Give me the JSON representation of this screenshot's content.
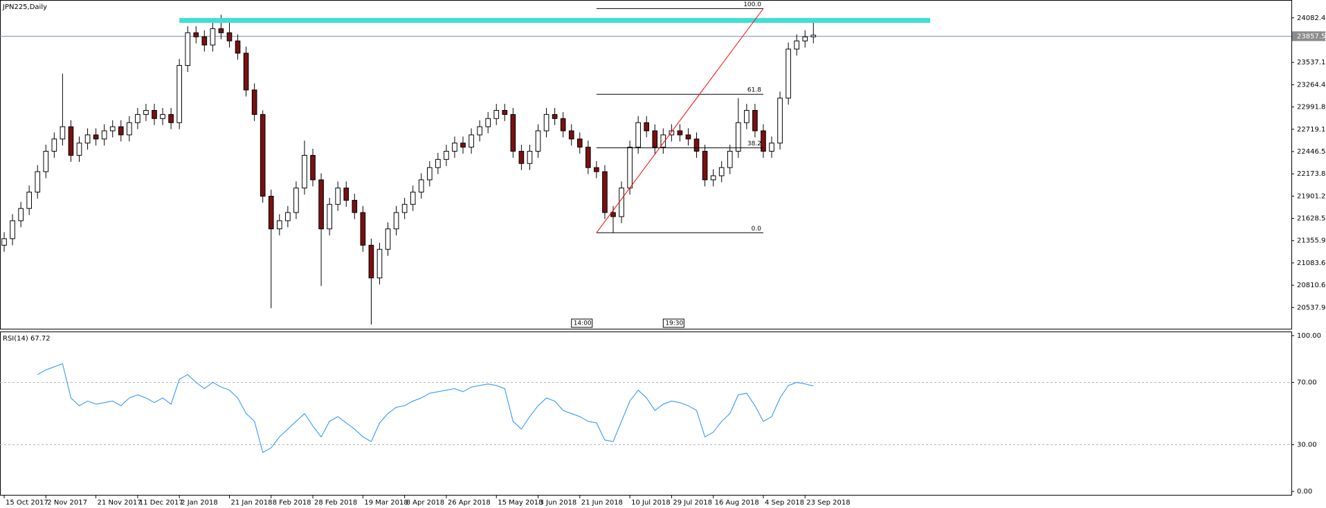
{
  "chart_data": [
    {
      "type": "candlestick",
      "title": "JPN225,Daily",
      "open": [
        21300,
        21380,
        21600,
        21750,
        21950,
        22200,
        22450,
        22600,
        22750,
        22400,
        22550,
        22650,
        22600,
        22700,
        22750,
        22650,
        22800,
        22900,
        22950,
        22850,
        22900,
        22800,
        23500,
        23900,
        23850,
        23750,
        23950,
        23900,
        23800,
        23650,
        23200,
        22900,
        21900,
        21500,
        21600,
        21700,
        22000,
        22400,
        22100,
        21500,
        21800,
        22000,
        21850,
        21700,
        21300,
        20900,
        21250,
        21500,
        21700,
        21800,
        21950,
        22100,
        22250,
        22350,
        22450,
        22550,
        22500,
        22650,
        22750,
        22850,
        22950,
        22900,
        22450,
        22300,
        22450,
        22700,
        22900,
        22850,
        22700,
        22600,
        22500,
        22250,
        22200,
        21700,
        21650,
        22000,
        22500,
        22800,
        22700,
        22500,
        22650,
        22700,
        22650,
        22600,
        22450,
        22100,
        22150,
        22250,
        22450,
        22800,
        22950,
        22700,
        22450,
        22550,
        23100,
        23700,
        23800,
        23850
      ],
      "high": [
        21460,
        21680,
        21830,
        22030,
        22280,
        22530,
        22680,
        23400,
        22830,
        22630,
        22730,
        22730,
        22780,
        22830,
        22830,
        22880,
        22980,
        23030,
        23030,
        22980,
        22980,
        23580,
        23980,
        23980,
        23930,
        24030,
        24120,
        24080,
        23880,
        23730,
        23280,
        22950,
        21980,
        21680,
        21780,
        22080,
        22580,
        22480,
        22180,
        21880,
        22080,
        22080,
        21930,
        21780,
        21380,
        21330,
        21580,
        21780,
        21880,
        22030,
        22180,
        22330,
        22430,
        22530,
        22630,
        22630,
        22730,
        22830,
        22930,
        23030,
        23030,
        22980,
        22530,
        22530,
        22780,
        22980,
        22980,
        22930,
        22780,
        22680,
        22580,
        22330,
        22280,
        21780,
        22080,
        22580,
        22880,
        22880,
        22780,
        22730,
        22780,
        22780,
        22730,
        22680,
        22530,
        22230,
        22330,
        22530,
        23100,
        23030,
        23030,
        22780,
        22630,
        23180,
        23780,
        23880,
        23930,
        24060
      ],
      "low": [
        21220,
        21300,
        21520,
        21670,
        21870,
        22120,
        22370,
        22520,
        22320,
        22320,
        22470,
        22520,
        22520,
        22620,
        22570,
        22570,
        22720,
        22820,
        22770,
        22770,
        22720,
        22720,
        23420,
        23770,
        23670,
        23670,
        23820,
        23720,
        23570,
        23120,
        22820,
        21820,
        20530,
        21420,
        21520,
        21620,
        21920,
        22020,
        20800,
        21420,
        21720,
        21770,
        21620,
        21220,
        20330,
        20820,
        21170,
        21420,
        21620,
        21720,
        21870,
        22020,
        22170,
        22270,
        22370,
        22420,
        22420,
        22570,
        22670,
        22770,
        22820,
        22370,
        22220,
        22220,
        22370,
        22620,
        22770,
        22620,
        22520,
        22420,
        22170,
        22120,
        21620,
        21450,
        21570,
        21920,
        22420,
        22620,
        22420,
        22420,
        22570,
        22570,
        22520,
        22370,
        22020,
        22020,
        22070,
        22170,
        22370,
        22720,
        22620,
        22370,
        22370,
        22470,
        23020,
        23620,
        23720,
        23770
      ],
      "close": [
        21380,
        21600,
        21750,
        21950,
        22200,
        22450,
        22600,
        22750,
        22400,
        22550,
        22650,
        22600,
        22700,
        22750,
        22650,
        22800,
        22900,
        22950,
        22850,
        22900,
        22800,
        23500,
        23900,
        23850,
        23750,
        23950,
        23900,
        23800,
        23650,
        23200,
        22900,
        21900,
        21500,
        21600,
        21700,
        22000,
        22400,
        22100,
        21500,
        21800,
        22000,
        21850,
        21700,
        21300,
        20900,
        21250,
        21500,
        21700,
        21800,
        21950,
        22100,
        22250,
        22350,
        22450,
        22550,
        22500,
        22650,
        22750,
        22850,
        22950,
        22900,
        22450,
        22300,
        22450,
        22700,
        22900,
        22850,
        22700,
        22600,
        22500,
        22250,
        22200,
        21700,
        21650,
        22000,
        22500,
        22800,
        22700,
        22500,
        22650,
        22700,
        22650,
        22600,
        22450,
        22100,
        22150,
        22250,
        22450,
        22800,
        22950,
        22700,
        22450,
        22550,
        23100,
        23700,
        23800,
        23850,
        23870
      ],
      "up_color": "#ffffff",
      "down_color": "#7a1010",
      "wick_color": "#000000",
      "xlim": [
        -0.5,
        154.3
      ],
      "xticks": [
        {
          "value": 0,
          "label": "15 Oct 2017"
        },
        {
          "value": 5,
          "label": "2 Nov 2017"
        },
        {
          "value": 11,
          "label": "21 Nov 2017"
        },
        {
          "value": 16,
          "label": "11 Dec 2017"
        },
        {
          "value": 21,
          "label": "2 Jan 2018"
        },
        {
          "value": 27,
          "label": "21 Jan 2018"
        },
        {
          "value": 32,
          "label": "8 Feb 2018"
        },
        {
          "value": 37,
          "label": "28 Feb 2018"
        },
        {
          "value": 43,
          "label": "19 Mar 2018"
        },
        {
          "value": 48,
          "label": "8 Apr 2018"
        },
        {
          "value": 53,
          "label": "26 Apr 2018"
        },
        {
          "value": 59,
          "label": "15 May 2018"
        },
        {
          "value": 64,
          "label": "3 Jun 2018"
        },
        {
          "value": 69,
          "label": "21 Jun 2018"
        },
        {
          "value": 75,
          "label": "10 Jul 2018"
        },
        {
          "value": 80,
          "label": "29 Jul 2018"
        },
        {
          "value": 85,
          "label": "16 Aug 2018"
        },
        {
          "value": 91,
          "label": "4 Sep 2018"
        },
        {
          "value": 96,
          "label": "23 Sep 2018"
        }
      ],
      "ylim": [
        20278.1,
        24300.7
      ],
      "yticks": [
        {
          "value": 24082.4,
          "label": "24082.40"
        },
        {
          "value": 23537.1,
          "label": "23537.10"
        },
        {
          "value": 23264.45,
          "label": "23264.45"
        },
        {
          "value": 22991.8,
          "label": "22991.80"
        },
        {
          "value": 22719.15,
          "label": "22719.15"
        },
        {
          "value": 22446.5,
          "label": "22446.50"
        },
        {
          "value": 22173.85,
          "label": "22173.85"
        },
        {
          "value": 21901.2,
          "label": "21901.20"
        },
        {
          "value": 21628.55,
          "label": "21628.55"
        },
        {
          "value": 21355.9,
          "label": "21355.90"
        },
        {
          "value": 21083.6,
          "label": "21083.60"
        },
        {
          "value": 20810.6,
          "label": "20810.60"
        },
        {
          "value": 20537.95,
          "label": "20537.95"
        }
      ],
      "current_price": {
        "value": 23857.5,
        "label": "23857.50",
        "color": "#6f8fb0"
      },
      "resistance": {
        "value": 24051,
        "x": [
          21,
          111
        ],
        "color": "#40e0d0"
      },
      "fibonacci": {
        "x": [
          71,
          91
        ],
        "color": "#000000",
        "trend_color": "#ff0000",
        "levels": [
          {
            "value": 21453,
            "label": "0.0"
          },
          {
            "value": 22492,
            "label": "38.2"
          },
          {
            "value": 23147,
            "label": "61.8"
          },
          {
            "value": 24196,
            "label": "100.0"
          }
        ]
      },
      "events": [
        {
          "x": 68,
          "label": "14:00"
        },
        {
          "x": 79,
          "label": "19:30"
        }
      ]
    },
    {
      "type": "line",
      "title": "RSI(14) 67.72",
      "series": [
        {
          "color": "#1e90ff",
          "values": [
            null,
            null,
            null,
            null,
            75,
            78,
            80,
            82,
            60,
            55,
            58,
            56,
            57,
            58,
            55,
            60,
            62,
            60,
            57,
            60,
            56,
            72,
            75,
            70,
            66,
            70,
            67,
            65,
            60,
            50,
            45,
            25,
            28,
            35,
            40,
            45,
            50,
            42,
            35,
            45,
            48,
            44,
            40,
            35,
            32,
            44,
            50,
            54,
            55,
            58,
            60,
            63,
            64,
            65,
            66,
            64,
            67,
            68,
            69,
            68,
            66,
            45,
            40,
            48,
            55,
            60,
            58,
            52,
            50,
            48,
            45,
            44,
            33,
            32,
            45,
            58,
            65,
            60,
            52,
            56,
            58,
            57,
            55,
            52,
            35,
            38,
            45,
            50,
            62,
            63,
            55,
            45,
            48,
            60,
            68,
            70,
            69,
            67.72
          ]
        }
      ],
      "ylim": [
        -2.2,
        102.2
      ],
      "yticks": [
        {
          "value": 100,
          "label": "100.00"
        },
        {
          "value": 70,
          "label": "70.00"
        },
        {
          "value": 30,
          "label": "30.00"
        },
        {
          "value": 0,
          "label": "0.00"
        }
      ],
      "levels": [
        70,
        30
      ]
    }
  ]
}
